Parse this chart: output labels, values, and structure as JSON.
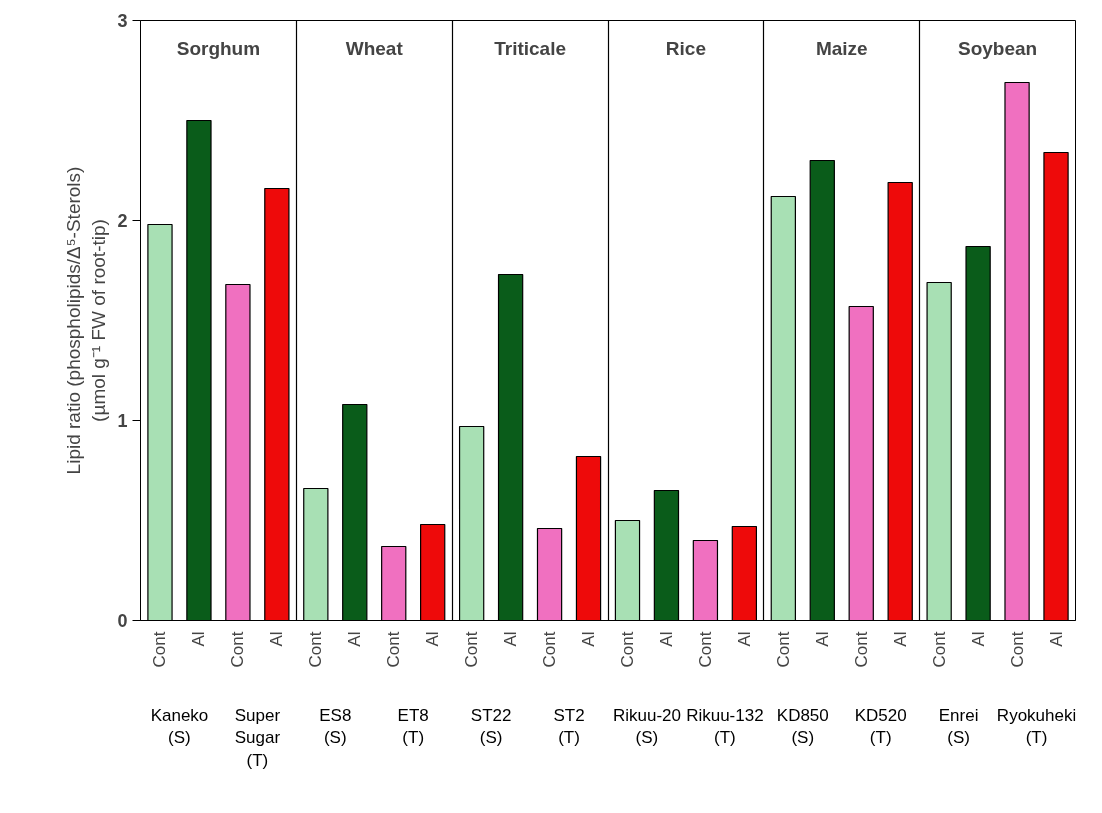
{
  "chart_data": {
    "type": "bar",
    "ylabel": "Lipid ratio (phospholipids/Δ⁵-Sterols)\n(µmol g⁻¹ FW of root-tip)",
    "categories": [
      "Cont",
      "Al",
      "Cont",
      "Al",
      "Cont",
      "Al",
      "Cont",
      "Al",
      "Cont",
      "Al",
      "Cont",
      "Al",
      "Cont",
      "Al",
      "Cont",
      "Al",
      "Cont",
      "Al",
      "Cont",
      "Al",
      "Cont",
      "Al",
      "Cont",
      "Al"
    ],
    "values": [
      1.98,
      2.5,
      1.68,
      2.16,
      0.66,
      1.08,
      0.37,
      0.48,
      0.97,
      1.73,
      0.46,
      0.82,
      0.5,
      0.65,
      0.4,
      0.47,
      2.12,
      2.3,
      1.57,
      2.19,
      1.69,
      1.87,
      2.69,
      2.34
    ],
    "colors": [
      "#a8e0b4",
      "#0a5c1a",
      "#f070c0",
      "#ee0a0a",
      "#a8e0b4",
      "#0a5c1a",
      "#f070c0",
      "#ee0a0a",
      "#a8e0b4",
      "#0a5c1a",
      "#f070c0",
      "#ee0a0a",
      "#a8e0b4",
      "#0a5c1a",
      "#f070c0",
      "#ee0a0a",
      "#a8e0b4",
      "#0a5c1a",
      "#f070c0",
      "#ee0a0a",
      "#a8e0b4",
      "#0a5c1a",
      "#f070c0",
      "#ee0a0a"
    ],
    "ylim": [
      0,
      3
    ],
    "yticks": [
      0,
      1,
      2,
      3
    ],
    "annotations": [
      "Sorghum",
      "Wheat",
      "Triticale",
      "Rice",
      "Maize",
      "Soybean",
      "Kaneko (S)",
      "Super Sugar (T)",
      "ES8 (S)",
      "ET8 (T)",
      "ST22 (S)",
      "ST2 (T)",
      "Rikuu-20 (S)",
      "Rikuu-132 (T)",
      "KD850 (S)",
      "KD520 (T)",
      "Enrei (S)",
      "Ryokuheki (T)"
    ]
  }
}
